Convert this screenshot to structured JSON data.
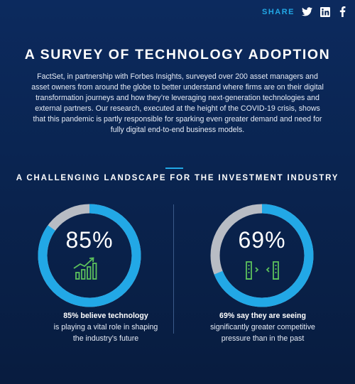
{
  "share": {
    "label": "SHARE",
    "icons": [
      "twitter-icon",
      "linkedin-icon",
      "facebook-icon"
    ]
  },
  "title": "A SURVEY OF TECHNOLOGY ADOPTION",
  "intro": "FactSet, in partnership with Forbes Insights, surveyed over 200 asset managers and asset owners from around the globe to better understand where firms are on their digital transformation journeys and how they’re leveraging next-generation technologies and external partners. Our research, executed at the height of the COVID-19 crisis, shows that this pandemic is partly responsible for sparking even greater demand and need for fully digital end-to-end business models.",
  "subtitle": "A CHALLENGING LANDSCAPE FOR THE INVESTMENT INDUSTRY",
  "colors": {
    "accent": "#22a8e6",
    "ring_track": "#b8bcc4",
    "icon_green": "#5cc15c",
    "background": "#0a2450"
  },
  "stats": [
    {
      "value_text": "85%",
      "percent": 85,
      "icon": "growth-chart-icon",
      "caption_bold": "85% believe technology",
      "caption_rest": "is playing a vital role in shaping the industry’s future"
    },
    {
      "value_text": "69%",
      "percent": 69,
      "icon": "competition-buildings-icon",
      "caption_bold": "69% say they are seeing",
      "caption_rest": "significantly greater competitive pressure than in the past"
    }
  ]
}
